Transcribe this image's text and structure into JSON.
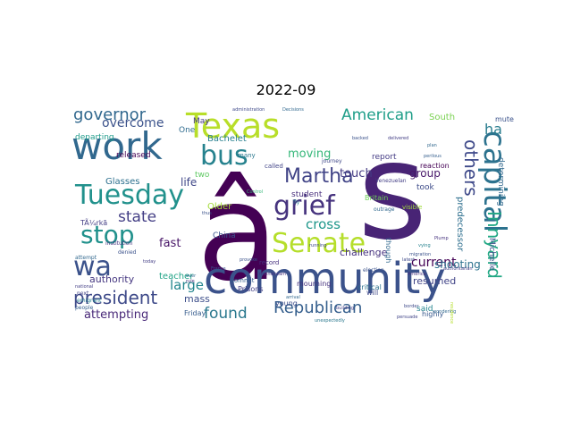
{
  "chart_data": {
    "type": "wordcloud",
    "title": "2022-09",
    "colormap": "viridis",
    "background": "#ffffff",
    "words": [
      {
        "text": "â",
        "weight": 1.0,
        "color": "#440154"
      },
      {
        "text": "s",
        "weight": 0.98,
        "color": "#482475"
      },
      {
        "text": "community",
        "weight": 0.62,
        "color": "#3b528b"
      },
      {
        "text": "work",
        "weight": 0.5,
        "color": "#31688e"
      },
      {
        "text": "Texas",
        "weight": 0.47,
        "color": "#b8de29"
      },
      {
        "text": "Tuesday",
        "weight": 0.43,
        "color": "#21918c"
      },
      {
        "text": "capital",
        "weight": 0.42,
        "color": "#2c728e"
      },
      {
        "text": "Senate",
        "weight": 0.4,
        "color": "#b5de2b"
      },
      {
        "text": "stop",
        "weight": 0.39,
        "color": "#21918c"
      },
      {
        "text": "wa",
        "weight": 0.38,
        "color": "#3b528b"
      },
      {
        "text": "grief",
        "weight": 0.36,
        "color": "#46337e"
      },
      {
        "text": "bus",
        "weight": 0.33,
        "color": "#26828e"
      },
      {
        "text": "others",
        "weight": 0.31,
        "color": "#3e4989"
      },
      {
        "text": "Innyard",
        "weight": 0.29,
        "color": "#22a884"
      },
      {
        "text": "president",
        "weight": 0.28,
        "color": "#3e4a89"
      },
      {
        "text": "Martha",
        "weight": 0.27,
        "color": "#414487"
      },
      {
        "text": "Republican",
        "weight": 0.25,
        "color": "#355f8d"
      },
      {
        "text": "governor",
        "weight": 0.24,
        "color": "#31688e"
      },
      {
        "text": "American",
        "weight": 0.23,
        "color": "#1f9e89"
      },
      {
        "text": "found",
        "weight": 0.22,
        "color": "#2a788e"
      },
      {
        "text": "state",
        "weight": 0.22,
        "color": "#433e85"
      },
      {
        "text": "ha",
        "weight": 0.22,
        "color": "#287c8e"
      },
      {
        "text": "large",
        "weight": 0.2,
        "color": "#24868e"
      },
      {
        "text": "cross",
        "weight": 0.19,
        "color": "#1f978b"
      },
      {
        "text": "overcome",
        "weight": 0.19,
        "color": "#3b528b"
      },
      {
        "text": "current",
        "weight": 0.18,
        "color": "#440154"
      },
      {
        "text": "moving",
        "weight": 0.17,
        "color": "#35b779"
      },
      {
        "text": "attempting",
        "weight": 0.16,
        "color": "#482878"
      },
      {
        "text": "touch",
        "weight": 0.16,
        "color": "#443a83"
      },
      {
        "text": "fast",
        "weight": 0.15,
        "color": "#481668"
      },
      {
        "text": "shooting",
        "weight": 0.15,
        "color": "#2c728e"
      },
      {
        "text": "group",
        "weight": 0.15,
        "color": "#48186a"
      },
      {
        "text": "life",
        "weight": 0.14,
        "color": "#3f4788"
      },
      {
        "text": "challenge",
        "weight": 0.14,
        "color": "#46327e"
      },
      {
        "text": "resumed",
        "weight": 0.14,
        "color": "#404387"
      },
      {
        "text": "authority",
        "weight": 0.13,
        "color": "#453781"
      },
      {
        "text": "mass",
        "weight": 0.13,
        "color": "#3d4e8a"
      },
      {
        "text": "teacher",
        "weight": 0.13,
        "color": "#20a386"
      },
      {
        "text": "Older",
        "weight": 0.13,
        "color": "#a2da37"
      },
      {
        "text": "Glasses",
        "weight": 0.12,
        "color": "#2d708e"
      },
      {
        "text": "South",
        "weight": 0.12,
        "color": "#7ad151"
      },
      {
        "text": "Bachelet",
        "weight": 0.12,
        "color": "#277f8e"
      },
      {
        "text": "predecessor",
        "weight": 0.12,
        "color": "#2e6f8e"
      },
      {
        "text": "Michelle",
        "weight": 0.11,
        "color": "#3c4f8a"
      },
      {
        "text": "determining",
        "weight": 0.11,
        "color": "#31688e"
      },
      {
        "text": "took",
        "weight": 0.11,
        "color": "#3e4c8a"
      },
      {
        "text": "report",
        "weight": 0.11,
        "color": "#443b84"
      },
      {
        "text": "said",
        "weight": 0.11,
        "color": "#25848e"
      },
      {
        "text": "One",
        "weight": 0.1,
        "color": "#2f6b8e"
      },
      {
        "text": "May",
        "weight": 0.1,
        "color": "#443983"
      },
      {
        "text": "released",
        "weight": 0.1,
        "color": "#440154"
      },
      {
        "text": "departing",
        "weight": 0.1,
        "color": "#1e9b8a"
      },
      {
        "text": "two",
        "weight": 0.1,
        "color": "#5ec962"
      },
      {
        "text": "student",
        "weight": 0.1,
        "color": "#472d7b"
      },
      {
        "text": "China",
        "weight": 0.09,
        "color": "#3a548c"
      },
      {
        "text": "critical",
        "weight": 0.09,
        "color": "#2c728e"
      },
      {
        "text": "Prisons",
        "weight": 0.09,
        "color": "#423f85"
      },
      {
        "text": "mourning",
        "weight": 0.09,
        "color": "#46327e"
      },
      {
        "text": "Friday",
        "weight": 0.09,
        "color": "#365c8d"
      },
      {
        "text": "young",
        "weight": 0.09,
        "color": "#3d4d8a"
      },
      {
        "text": "highly",
        "weight": 0.09,
        "color": "#38598c"
      },
      {
        "text": "will",
        "weight": 0.09,
        "color": "#3f4889"
      },
      {
        "text": "TÃ¼rkã",
        "weight": 0.08,
        "color": "#433d84"
      },
      {
        "text": "mute",
        "weight": 0.08,
        "color": "#3b528b"
      },
      {
        "text": "reaction",
        "weight": 0.08,
        "color": "#440154"
      },
      {
        "text": "Britain",
        "weight": 0.08,
        "color": "#6ece58"
      },
      {
        "text": "though",
        "weight": 0.08,
        "color": "#31688e"
      },
      {
        "text": "visible",
        "weight": 0.07,
        "color": "#9fda3a"
      },
      {
        "text": "called",
        "weight": 0.07,
        "color": "#414487"
      },
      {
        "text": "many",
        "weight": 0.07,
        "color": "#2a788e"
      },
      {
        "text": "record",
        "weight": 0.07,
        "color": "#46307e"
      },
      {
        "text": "commit",
        "weight": 0.07,
        "color": "#355f8d"
      },
      {
        "text": "election",
        "weight": 0.07,
        "color": "#3b528b"
      },
      {
        "text": "outrage",
        "weight": 0.07,
        "color": "#31688e"
      },
      {
        "text": "Venezuelan",
        "weight": 0.07,
        "color": "#433e85"
      },
      {
        "text": "journey",
        "weight": 0.07,
        "color": "#3f4788"
      },
      {
        "text": "fly",
        "weight": 0.06,
        "color": "#2a788e"
      },
      {
        "text": "institution",
        "weight": 0.06,
        "color": "#46327e"
      },
      {
        "text": "attempt",
        "weight": 0.06,
        "color": "#31688e"
      },
      {
        "text": "denied",
        "weight": 0.06,
        "color": "#3b528b"
      },
      {
        "text": "next",
        "weight": 0.06,
        "color": "#404387"
      },
      {
        "text": "emigrant",
        "weight": 0.06,
        "color": "#26828e"
      },
      {
        "text": "people",
        "weight": 0.06,
        "color": "#355f8d"
      },
      {
        "text": "national",
        "weight": 0.05,
        "color": "#433e85"
      },
      {
        "text": "provoke",
        "weight": 0.05,
        "color": "#3b528b"
      },
      {
        "text": "running",
        "weight": 0.05,
        "color": "#3e4989"
      },
      {
        "text": "arrival",
        "weight": 0.05,
        "color": "#31688e"
      },
      {
        "text": "building",
        "weight": 0.05,
        "color": "#433e85"
      },
      {
        "text": "unexpectedly",
        "weight": 0.05,
        "color": "#2a788e"
      },
      {
        "text": "mainstream",
        "weight": 0.05,
        "color": "#46327e"
      },
      {
        "text": "latest",
        "weight": 0.05,
        "color": "#3e4989"
      },
      {
        "text": "wondering",
        "weight": 0.05,
        "color": "#31688e"
      },
      {
        "text": "persuade",
        "weight": 0.05,
        "color": "#404387"
      },
      {
        "text": "authoritarian",
        "weight": 0.05,
        "color": "#433e85"
      },
      {
        "text": "migration",
        "weight": 0.05,
        "color": "#3b528b"
      },
      {
        "text": "vying",
        "weight": 0.05,
        "color": "#26828e"
      },
      {
        "text": "America",
        "weight": 0.04,
        "color": "#46327e"
      },
      {
        "text": "plan",
        "weight": 0.04,
        "color": "#31688e"
      },
      {
        "text": "backed",
        "weight": 0.04,
        "color": "#3b528b"
      },
      {
        "text": "delivered",
        "weight": 0.04,
        "color": "#433e85"
      },
      {
        "text": "perilous",
        "weight": 0.04,
        "color": "#355f8d"
      },
      {
        "text": "border",
        "weight": 0.04,
        "color": "#3e4989"
      },
      {
        "text": "ever",
        "weight": 0.04,
        "color": "#31688e"
      },
      {
        "text": "rule",
        "weight": 0.04,
        "color": "#46327e"
      },
      {
        "text": "thus",
        "weight": 0.04,
        "color": "#3b528b"
      },
      {
        "text": "today",
        "weight": 0.04,
        "color": "#433e85"
      },
      {
        "text": "administration",
        "weight": 0.04,
        "color": "#3e4989"
      },
      {
        "text": "Decisions",
        "weight": 0.04,
        "color": "#31688e"
      },
      {
        "text": "Plump",
        "weight": 0.04,
        "color": "#46327e"
      },
      {
        "text": "Control",
        "weight": 0.03,
        "color": "#35b779"
      },
      {
        "text": "residence",
        "weight": 0.03,
        "color": "#b5de2b"
      },
      {
        "text": "France",
        "weight": 0.03,
        "color": "#3b528b"
      }
    ]
  }
}
